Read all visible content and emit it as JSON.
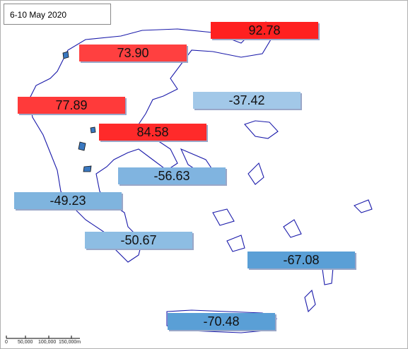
{
  "title": "6-10 May 2020",
  "labels": [
    {
      "text": "92.78",
      "color": "#ff2020"
    },
    {
      "text": "73.90",
      "color": "#ff4040"
    },
    {
      "text": "77.89",
      "color": "#ff3a3a"
    },
    {
      "text": "-37.42",
      "color": "#a2c8e8"
    },
    {
      "text": "84.58",
      "color": "#ff2a2a"
    },
    {
      "text": "-56.63",
      "color": "#80b4e0"
    },
    {
      "text": "-49.23",
      "color": "#7fb4de"
    },
    {
      "text": "-50.67",
      "color": "#8dbde3"
    },
    {
      "text": "-67.08",
      "color": "#5a9fd6"
    },
    {
      "text": "-70.48",
      "color": "#5a9fd6"
    }
  ],
  "scale": {
    "labels": [
      "0",
      "50,000",
      "100,000",
      "150,000m"
    ]
  }
}
